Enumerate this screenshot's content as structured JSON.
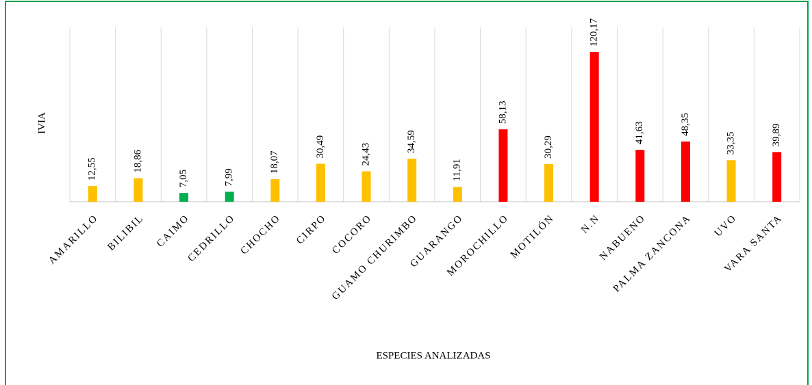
{
  "chart_data": {
    "type": "bar",
    "xlabel": "ESPECIES ANALIZADAS",
    "ylabel": "IVIA",
    "categories": [
      "AMARILLO",
      "BILIBIL",
      "CAIMO",
      "CEDRILLO",
      "CHOCHO",
      "CIRPO",
      "COCORO",
      "GUAMO CHURIMBO",
      "GUARANGO",
      "MOROCHILLO",
      "MOTILÓN",
      "N.N",
      "NABUENO",
      "PALMA ZANCONA",
      "UVO",
      "VARA SANTA"
    ],
    "values": [
      12.55,
      18.86,
      7.05,
      7.99,
      18.07,
      30.49,
      24.43,
      34.59,
      11.91,
      58.13,
      30.29,
      120.17,
      41.63,
      48.35,
      33.35,
      39.89
    ],
    "value_labels": [
      "12,55",
      "18,86",
      "7,05",
      "7,99",
      "18,07",
      "30,49",
      "24,43",
      "34,59",
      "11,91",
      "58,13",
      "30,29",
      "120,17",
      "41,63",
      "48,35",
      "33,35",
      "39,89"
    ],
    "colors": [
      "#FFC000",
      "#FFC000",
      "#00B050",
      "#00B050",
      "#FFC000",
      "#FFC000",
      "#FFC000",
      "#FFC000",
      "#FFC000",
      "#FF0000",
      "#FFC000",
      "#FF0000",
      "#FF0000",
      "#FF0000",
      "#FFC000",
      "#FF0000"
    ],
    "ylim": [
      0,
      140
    ]
  }
}
